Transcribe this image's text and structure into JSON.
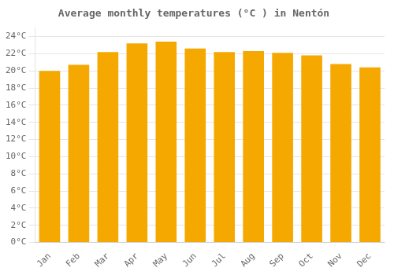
{
  "chart_data": {
    "type": "bar",
    "title": "Average monthly temperatures (°C ) in Nentón",
    "categories": [
      "Jan",
      "Feb",
      "Mar",
      "Apr",
      "May",
      "Jun",
      "Jul",
      "Aug",
      "Sep",
      "Oct",
      "Nov",
      "Dec"
    ],
    "values": [
      20.0,
      20.7,
      22.2,
      23.2,
      23.4,
      22.6,
      22.2,
      22.3,
      22.1,
      21.8,
      20.8,
      20.4
    ],
    "color": "#F5A800",
    "ylim": [
      0,
      25
    ],
    "yticks": [
      {
        "value": 0,
        "label": "0°C"
      },
      {
        "value": 2,
        "label": "2°C"
      },
      {
        "value": 4,
        "label": "4°C"
      },
      {
        "value": 6,
        "label": "6°C"
      },
      {
        "value": 8,
        "label": "8°C"
      },
      {
        "value": 10,
        "label": "10°C"
      },
      {
        "value": 12,
        "label": "12°C"
      },
      {
        "value": 14,
        "label": "14°C"
      },
      {
        "value": 16,
        "label": "16°C"
      },
      {
        "value": 18,
        "label": "18°C"
      },
      {
        "value": 20,
        "label": "20°C"
      },
      {
        "value": 22,
        "label": "22°C"
      },
      {
        "value": 24,
        "label": "24°C"
      }
    ],
    "grid": true
  }
}
